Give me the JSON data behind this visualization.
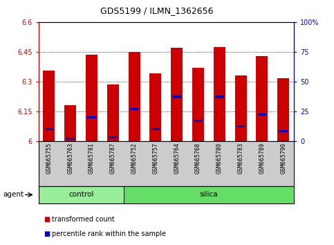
{
  "title": "GDS5199 / ILMN_1362656",
  "samples": [
    "GSM665755",
    "GSM665763",
    "GSM665781",
    "GSM665787",
    "GSM665752",
    "GSM665757",
    "GSM665764",
    "GSM665768",
    "GSM665780",
    "GSM665783",
    "GSM665789",
    "GSM665790"
  ],
  "groups": [
    "control",
    "control",
    "control",
    "control",
    "silica",
    "silica",
    "silica",
    "silica",
    "silica",
    "silica",
    "silica",
    "silica"
  ],
  "red_values": [
    6.355,
    6.18,
    6.435,
    6.285,
    6.45,
    6.34,
    6.47,
    6.37,
    6.475,
    6.33,
    6.43,
    6.315
  ],
  "blue_values_pct": [
    10,
    2,
    20,
    3,
    27,
    10,
    37,
    17,
    37,
    12,
    22,
    8
  ],
  "y_min": 6.0,
  "y_max": 6.6,
  "y_ticks": [
    6.0,
    6.15,
    6.3,
    6.45,
    6.6
  ],
  "y_tick_labels": [
    "6",
    "6.15",
    "6.3",
    "6.45",
    "6.6"
  ],
  "y2_ticks": [
    0,
    25,
    50,
    75,
    100
  ],
  "y2_tick_labels": [
    "0",
    "25",
    "50",
    "75",
    "100%"
  ],
  "bar_width": 0.55,
  "red_color": "#cc0000",
  "blue_color": "#0000cc",
  "control_color": "#99ee99",
  "silica_color": "#66dd66",
  "bg_color": "#cccccc",
  "group_label": "agent",
  "legend_red": "transformed count",
  "legend_blue": "percentile rank within the sample",
  "grid_levels": [
    6.15,
    6.3,
    6.45
  ]
}
